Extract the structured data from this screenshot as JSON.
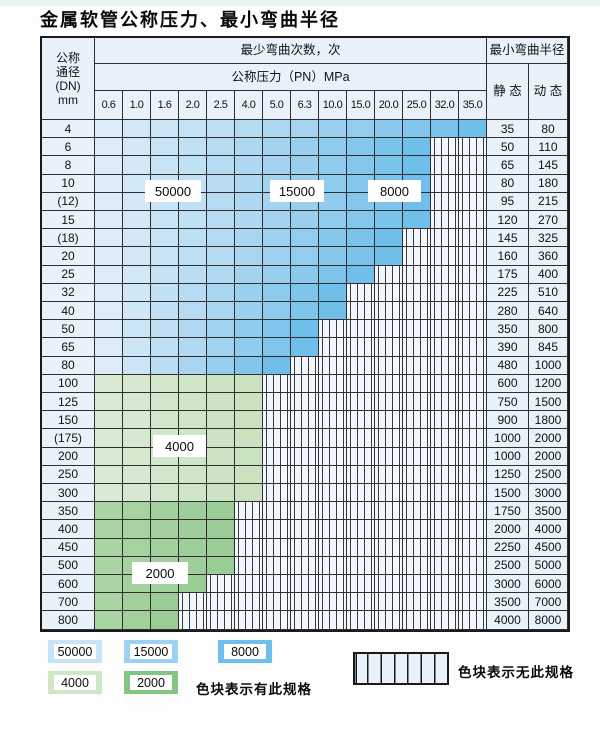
{
  "title": "金属软管公称压力、最小弯曲半径",
  "table": {
    "dn_header_lines": [
      "公称",
      "通径",
      "(DN)",
      "mm"
    ],
    "cycles_header": "最少弯曲次数，次",
    "pressure_header": "公称压力（PN）MPa",
    "radius_header": "最小弯曲半径",
    "static_header": "静 态",
    "dynamic_header": "动 态",
    "pressure_columns": [
      "0.6",
      "1.0",
      "1.6",
      "2.0",
      "2.5",
      "4.0",
      "5.0",
      "6.3",
      "10.0",
      "15.0",
      "20.0",
      "25.0",
      "32.0",
      "35.0"
    ],
    "rows": [
      {
        "dn": "4",
        "band": "blue",
        "colored_columns": 14,
        "static": "35",
        "dynamic": "80"
      },
      {
        "dn": "6",
        "band": "blue",
        "colored_columns": 12,
        "static": "50",
        "dynamic": "110"
      },
      {
        "dn": "8",
        "band": "blue",
        "colored_columns": 12,
        "static": "65",
        "dynamic": "145"
      },
      {
        "dn": "10",
        "band": "blue",
        "colored_columns": 12,
        "static": "80",
        "dynamic": "180"
      },
      {
        "dn": "(12)",
        "band": "blue",
        "colored_columns": 12,
        "static": "95",
        "dynamic": "215"
      },
      {
        "dn": "15",
        "band": "blue",
        "colored_columns": 12,
        "static": "120",
        "dynamic": "270"
      },
      {
        "dn": "(18)",
        "band": "blue",
        "colored_columns": 11,
        "static": "145",
        "dynamic": "325"
      },
      {
        "dn": "20",
        "band": "blue",
        "colored_columns": 11,
        "static": "160",
        "dynamic": "360"
      },
      {
        "dn": "25",
        "band": "blue",
        "colored_columns": 10,
        "static": "175",
        "dynamic": "400"
      },
      {
        "dn": "32",
        "band": "blue",
        "colored_columns": 9,
        "static": "225",
        "dynamic": "510"
      },
      {
        "dn": "40",
        "band": "blue",
        "colored_columns": 9,
        "static": "280",
        "dynamic": "640"
      },
      {
        "dn": "50",
        "band": "blue",
        "colored_columns": 8,
        "static": "350",
        "dynamic": "800"
      },
      {
        "dn": "65",
        "band": "blue",
        "colored_columns": 8,
        "static": "390",
        "dynamic": "845"
      },
      {
        "dn": "80",
        "band": "blue",
        "colored_columns": 7,
        "static": "480",
        "dynamic": "1000"
      },
      {
        "dn": "100",
        "band": "green-light",
        "colored_columns": 6,
        "static": "600",
        "dynamic": "1200"
      },
      {
        "dn": "125",
        "band": "green-light",
        "colored_columns": 6,
        "static": "750",
        "dynamic": "1500"
      },
      {
        "dn": "150",
        "band": "green-light",
        "colored_columns": 6,
        "static": "900",
        "dynamic": "1800"
      },
      {
        "dn": "(175)",
        "band": "green-light",
        "colored_columns": 6,
        "static": "1000",
        "dynamic": "2000"
      },
      {
        "dn": "200",
        "band": "green-light",
        "colored_columns": 6,
        "static": "1000",
        "dynamic": "2000"
      },
      {
        "dn": "250",
        "band": "green-light",
        "colored_columns": 6,
        "static": "1250",
        "dynamic": "2500"
      },
      {
        "dn": "300",
        "band": "green-light",
        "colored_columns": 6,
        "static": "1500",
        "dynamic": "3000"
      },
      {
        "dn": "350",
        "band": "green-medium",
        "colored_columns": 5,
        "static": "1750",
        "dynamic": "3500"
      },
      {
        "dn": "400",
        "band": "green-medium",
        "colored_columns": 5,
        "static": "2000",
        "dynamic": "4000"
      },
      {
        "dn": "450",
        "band": "green-medium",
        "colored_columns": 5,
        "static": "2250",
        "dynamic": "4500"
      },
      {
        "dn": "500",
        "band": "green-medium",
        "colored_columns": 5,
        "static": "2500",
        "dynamic": "5000"
      },
      {
        "dn": "600",
        "band": "green-medium",
        "colored_columns": 4,
        "static": "3000",
        "dynamic": "6000"
      },
      {
        "dn": "700",
        "band": "green-medium",
        "colored_columns": 3,
        "static": "3500",
        "dynamic": "7000"
      },
      {
        "dn": "800",
        "band": "green-medium",
        "colored_columns": 3,
        "static": "4000",
        "dynamic": "8000"
      }
    ],
    "cycle_labels": [
      {
        "id": "label-50000",
        "text": "50000"
      },
      {
        "id": "label-15000",
        "text": "15000"
      },
      {
        "id": "label-8000",
        "text": "8000"
      },
      {
        "id": "label-4000",
        "text": "4000"
      },
      {
        "id": "label-2000",
        "text": "2000"
      }
    ]
  },
  "legend": {
    "swatches": [
      {
        "label": "50000",
        "band": "blue-light"
      },
      {
        "label": "15000",
        "band": "blue-medium"
      },
      {
        "label": "8000",
        "band": "blue-dark"
      },
      {
        "label": "4000",
        "band": "green-light"
      },
      {
        "label": "2000",
        "band": "green-medium"
      }
    ],
    "available_text": "色块表示有此规格",
    "unavailable_text": "色块表示无此规格"
  },
  "colors": {
    "blue_light": "#DCEDF9",
    "blue_medium": "#A9D5F0",
    "blue_dark": "#6FBFEA",
    "green_light_start": "#D9EAD2",
    "green_light_end": "#C9E2C0",
    "green_medium_start": "#AAD4A4",
    "green_medium_end": "#9ACC95",
    "header_bg": "#E9F2FA",
    "hatch_bg": "#F1F7FC",
    "grid_line": "#2F2F2F",
    "swatch_blue_light": "#C7E3F6",
    "swatch_blue_medium": "#9DD1F1",
    "swatch_blue_dark": "#6FBFEC",
    "swatch_green_light": "#CFE6C7",
    "swatch_green_medium": "#84C584"
  }
}
